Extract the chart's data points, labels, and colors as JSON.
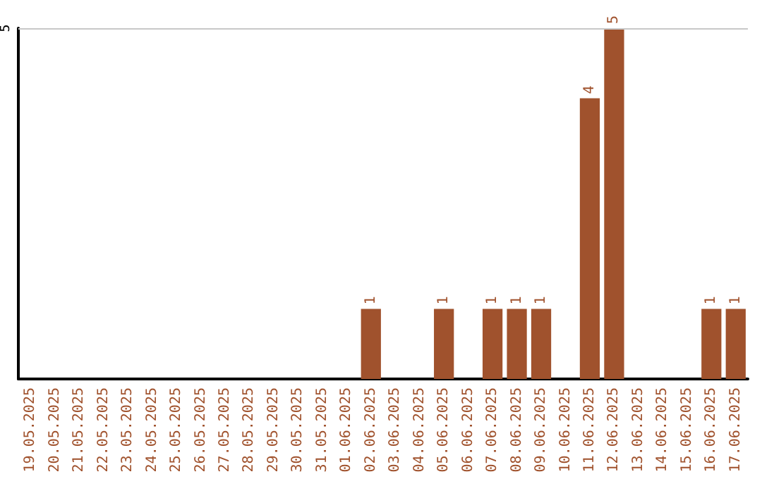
{
  "chart_data": {
    "type": "bar",
    "ylim": [
      0,
      5
    ],
    "yticks": [
      5
    ],
    "data_labels": true,
    "categories": [
      "19.05.2025",
      "20.05.2025",
      "21.05.2025",
      "22.05.2025",
      "23.05.2025",
      "24.05.2025",
      "25.05.2025",
      "26.05.2025",
      "27.05.2025",
      "28.05.2025",
      "29.05.2025",
      "30.05.2025",
      "31.05.2025",
      "01.06.2025",
      "02.06.2025",
      "03.06.2025",
      "04.06.2025",
      "05.06.2025",
      "06.06.2025",
      "07.06.2025",
      "08.06.2025",
      "09.06.2025",
      "10.06.2025",
      "11.06.2025",
      "12.06.2025",
      "13.06.2025",
      "14.06.2025",
      "15.06.2025",
      "16.06.2025",
      "17.06.2025"
    ],
    "values": [
      null,
      null,
      null,
      null,
      null,
      null,
      null,
      null,
      null,
      null,
      null,
      null,
      null,
      null,
      1,
      null,
      null,
      1,
      null,
      1,
      1,
      1,
      null,
      4,
      5,
      null,
      null,
      null,
      1,
      1
    ],
    "color": "#a0522d",
    "ref_lines": [
      {
        "axis": "y",
        "value": 5,
        "color": "#c8c8c8"
      }
    ]
  }
}
